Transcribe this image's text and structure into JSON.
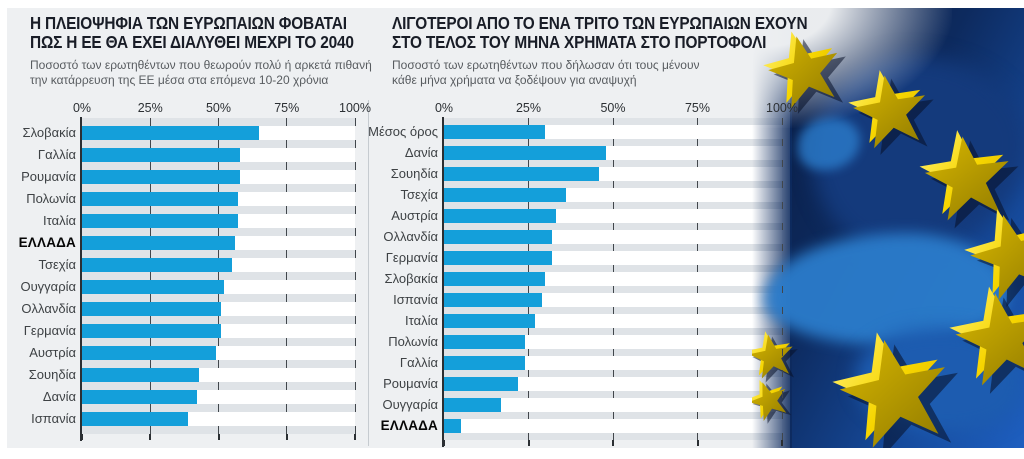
{
  "chart_data": [
    {
      "type": "bar",
      "orientation": "horizontal",
      "title": "Η ΠΛΕΙΟΨΗΦΙΑ ΤΩΝ ΕΥΡΩΠΑΙΩΝ ΦΟΒΑΤΑΙ ΠΩΣ Η ΕΕ ΘΑ ΕΧΕΙ ΔΙΑΛΥΘΕΙ ΜΕΧΡΙ ΤΟ 2040",
      "title_lines": [
        "Η ΠΛΕΙΟΨΗΦΙΑ ΤΩΝ ΕΥΡΩΠΑΙΩΝ ΦΟΒΑΤΑΙ",
        "ΠΩΣ Η ΕΕ ΘΑ ΕΧΕΙ ΔΙΑΛΥΘΕΙ ΜΕΧΡΙ ΤΟ 2040"
      ],
      "subtitle": "Ποσοστό των ερωτηθέντων που θεωρούν πολύ ή αρκετά πιθανή την κατάρρευση της ΕΕ μέσα στα επόμενα 10-20 χρόνια",
      "subtitle_lines": [
        "Ποσοστό των ερωτηθέντων που θεωρούν πολύ ή αρκετά πιθανή",
        "την κατάρρευση της ΕΕ μέσα στα επόμενα 10-20 χρόνια"
      ],
      "categories": [
        "Σλοβακία",
        "Γαλλία",
        "Ρουμανία",
        "Πολωνία",
        "Ιταλία",
        "ΕΛΛΑΔΑ",
        "Τσεχία",
        "Ουγγαρία",
        "Ολλανδία",
        "Γερμανία",
        "Αυστρία",
        "Σουηδία",
        "Δανία",
        "Ισπανία"
      ],
      "values": [
        65,
        58,
        58,
        57,
        57,
        56,
        55,
        52,
        51,
        51,
        49,
        43,
        42,
        39
      ],
      "emphasized_category": "ΕΛΛΑΔΑ",
      "unit": "%",
      "xlim": [
        0,
        100
      ],
      "x_ticks": [
        "0%",
        "25%",
        "50%",
        "75%",
        "100%"
      ],
      "grid": "dashed-vertical",
      "bar_color": "#149fda"
    },
    {
      "type": "bar",
      "orientation": "horizontal",
      "title": "ΛΙΓΟΤΕΡΟΙ ΑΠΟ ΤΟ ΕΝΑ ΤΡΙΤΟ ΤΩΝ ΕΥΡΩΠΑΙΩΝ ΕΧΟΥΝ ΣΤΟ ΤΕΛΟΣ ΤΟΥ ΜΗΝΑ ΧΡΗΜΑΤΑ ΣΤΟ ΠΟΡΤΟΦΟΛΙ",
      "title_lines": [
        "ΛΙΓΟΤΕΡΟΙ ΑΠΟ ΤΟ ΕΝΑ ΤΡΙΤΟ ΤΩΝ ΕΥΡΩΠΑΙΩΝ ΕΧΟΥΝ",
        "ΣΤΟ ΤΕΛΟΣ ΤΟΥ ΜΗΝΑ ΧΡΗΜΑΤΑ ΣΤΟ ΠΟΡΤΟΦΟΛΙ"
      ],
      "subtitle": "Ποσοστό των ερωτηθέντων που δήλωσαν ότι τους μένουν κάθε μήνα χρήματα να ξοδέψουν για αναψυχή",
      "subtitle_lines": [
        "Ποσοστό των ερωτηθέντων που δήλωσαν ότι τους μένουν",
        "κάθε μήνα χρήματα να ξοδέψουν για αναψυχή"
      ],
      "categories": [
        "Μέσος όρος",
        "Δανία",
        "Σουηδία",
        "Τσεχία",
        "Αυστρία",
        "Ολλανδία",
        "Γερμανία",
        "Σλοβακία",
        "Ισπανία",
        "Ιταλία",
        "Πολωνία",
        "Γαλλία",
        "Ρουμανία",
        "Ουγγαρία",
        "ΕΛΛΑΔΑ"
      ],
      "values": [
        30,
        48,
        46,
        36,
        33,
        32,
        32,
        30,
        29,
        27,
        24,
        24,
        22,
        17,
        5
      ],
      "emphasized_category": "ΕΛΛΑΔΑ",
      "unit": "%",
      "xlim": [
        0,
        100
      ],
      "x_ticks": [
        "0%",
        "25%",
        "50%",
        "75%",
        "100%"
      ],
      "grid": "dashed-vertical",
      "bar_color": "#149fda"
    }
  ],
  "decor": {
    "panel_bg": "#eef0f2",
    "stripe_gray": "#dfe3e7",
    "bar_blue": "#149fda",
    "flag_navy_dark": "#0a1c42",
    "flag_blue_bright": "#1e5fc0",
    "map_blue": "#2b7ccb",
    "star_yellow": "#f6d500"
  }
}
